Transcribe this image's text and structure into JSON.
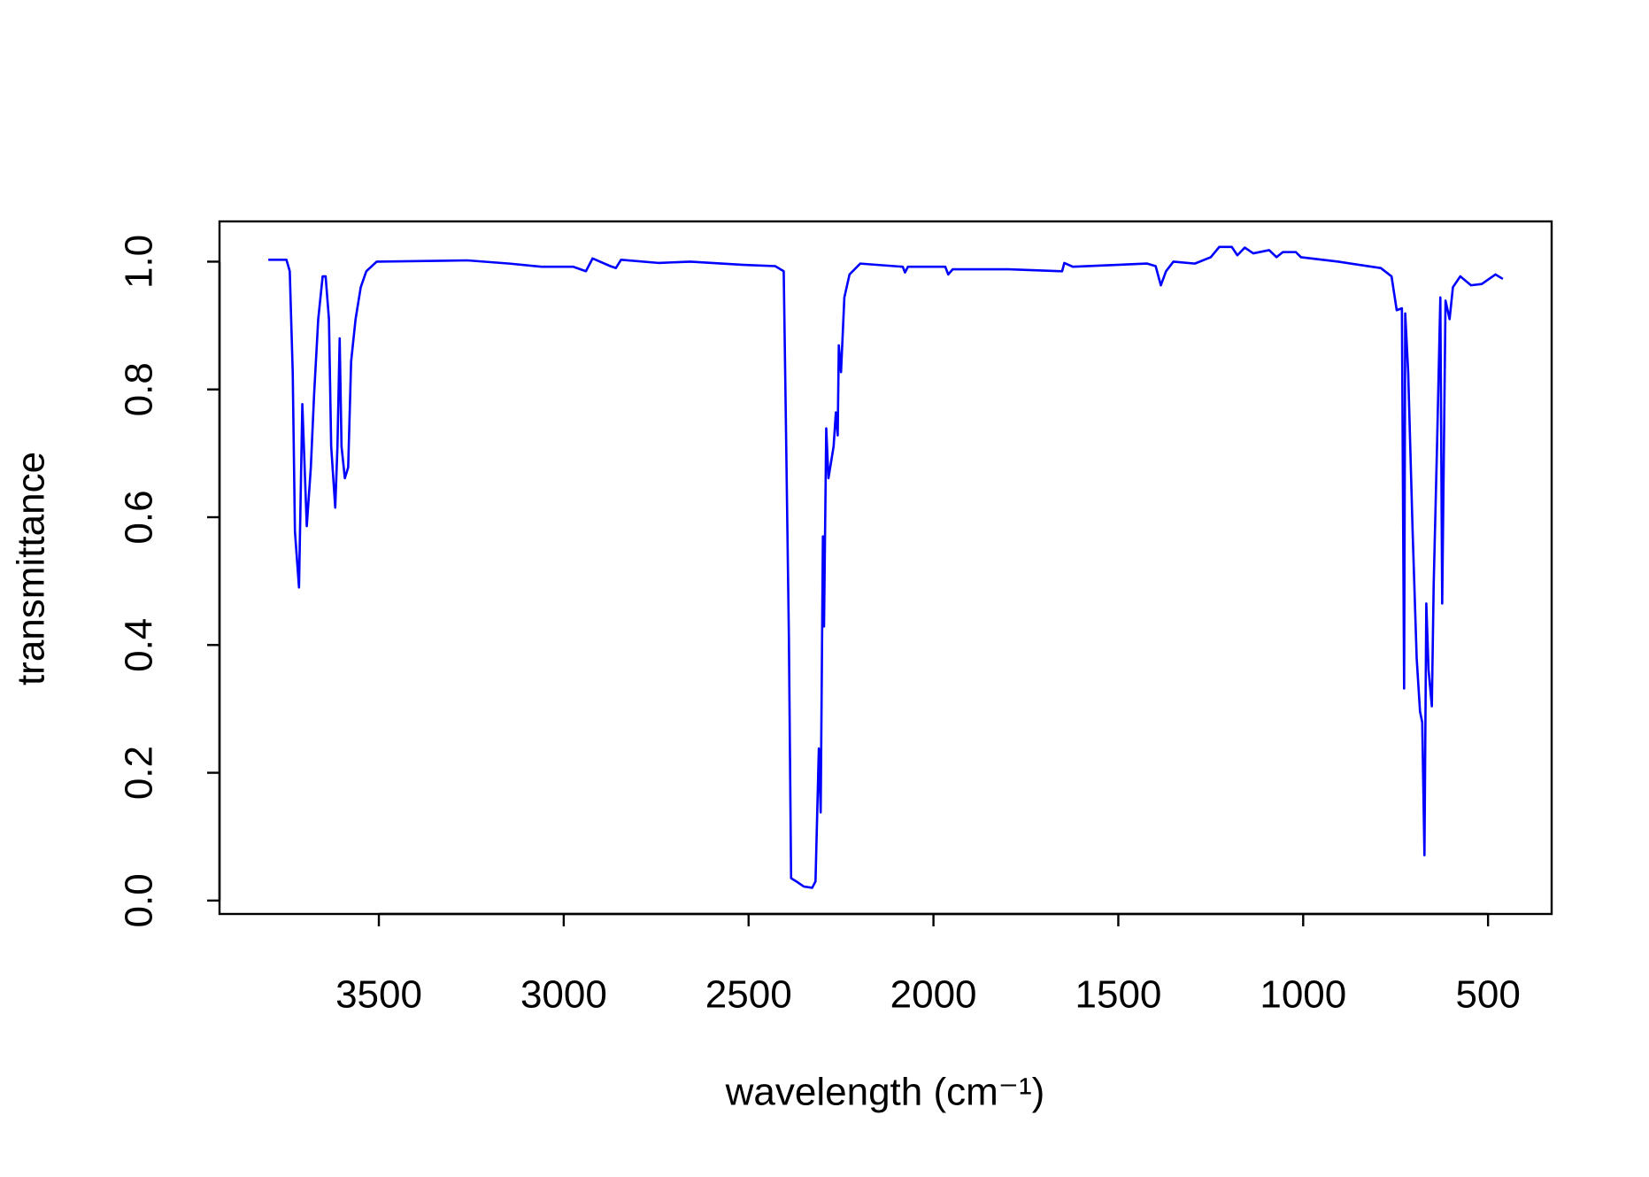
{
  "chart_data": {
    "type": "line",
    "xlabel": "wavelength (cm⁻¹)",
    "ylabel": "transmittance",
    "color": "#0000ff",
    "x": [
      3799,
      3750,
      3741,
      3733,
      3727,
      3716,
      3707,
      3695,
      3684,
      3675,
      3664,
      3652,
      3644,
      3635,
      3629,
      3618,
      3612,
      3606,
      3601,
      3592,
      3583,
      3575,
      3563,
      3549,
      3534,
      3506,
      3261,
      3147,
      3060,
      2974,
      2940,
      2922,
      2874,
      2859,
      2845,
      2744,
      2658,
      2514,
      2428,
      2405,
      2399,
      2391,
      2385,
      2371,
      2351,
      2328,
      2319,
      2310,
      2305,
      2299,
      2296,
      2290,
      2284,
      2270,
      2264,
      2259,
      2256,
      2250,
      2241,
      2227,
      2198,
      2083,
      2077,
      2069,
      1968,
      1960,
      1948,
      1796,
      1652,
      1646,
      1623,
      1422,
      1399,
      1385,
      1371,
      1351,
      1293,
      1250,
      1227,
      1193,
      1178,
      1158,
      1135,
      1092,
      1072,
      1055,
      1020,
      1006,
      905,
      790,
      761,
      747,
      733,
      727,
      724,
      716,
      704,
      693,
      684,
      678,
      672,
      667,
      661,
      652,
      647,
      638,
      629,
      624,
      615,
      604,
      595,
      575,
      546,
      517,
      480,
      460
    ],
    "values": [
      1.003,
      1.003,
      0.985,
      0.827,
      0.578,
      0.49,
      0.777,
      0.586,
      0.678,
      0.794,
      0.91,
      0.977,
      0.977,
      0.91,
      0.711,
      0.615,
      0.711,
      0.88,
      0.711,
      0.661,
      0.678,
      0.844,
      0.91,
      0.96,
      0.985,
      1.0,
      1.002,
      0.997,
      0.992,
      0.992,
      0.985,
      1.005,
      0.993,
      0.99,
      1.003,
      0.998,
      1.0,
      0.995,
      0.993,
      0.985,
      0.744,
      0.412,
      0.035,
      0.03,
      0.022,
      0.02,
      0.03,
      0.238,
      0.138,
      0.57,
      0.429,
      0.739,
      0.661,
      0.711,
      0.764,
      0.728,
      0.869,
      0.827,
      0.944,
      0.98,
      0.997,
      0.992,
      0.983,
      0.992,
      0.992,
      0.98,
      0.988,
      0.988,
      0.985,
      0.998,
      0.992,
      0.997,
      0.993,
      0.963,
      0.985,
      1.0,
      0.997,
      1.007,
      1.023,
      1.023,
      1.01,
      1.022,
      1.013,
      1.018,
      1.007,
      1.015,
      1.015,
      1.007,
      1.0,
      0.99,
      0.977,
      0.924,
      0.927,
      0.332,
      0.919,
      0.827,
      0.578,
      0.379,
      0.296,
      0.279,
      0.071,
      0.465,
      0.362,
      0.304,
      0.495,
      0.711,
      0.944,
      0.465,
      0.939,
      0.91,
      0.96,
      0.977,
      0.963,
      0.965,
      0.98,
      0.973
    ],
    "xlim": [
      3931,
      328
    ],
    "xticks": [
      3500,
      3000,
      2500,
      2000,
      1500,
      1000,
      500
    ],
    "ylim": [
      -0.021,
      1.063
    ],
    "yticks": [
      {
        "value": 0,
        "label": "0.0"
      },
      0.2,
      0.4,
      0.6,
      0.8,
      {
        "value": 1,
        "label": "1.0"
      }
    ]
  }
}
